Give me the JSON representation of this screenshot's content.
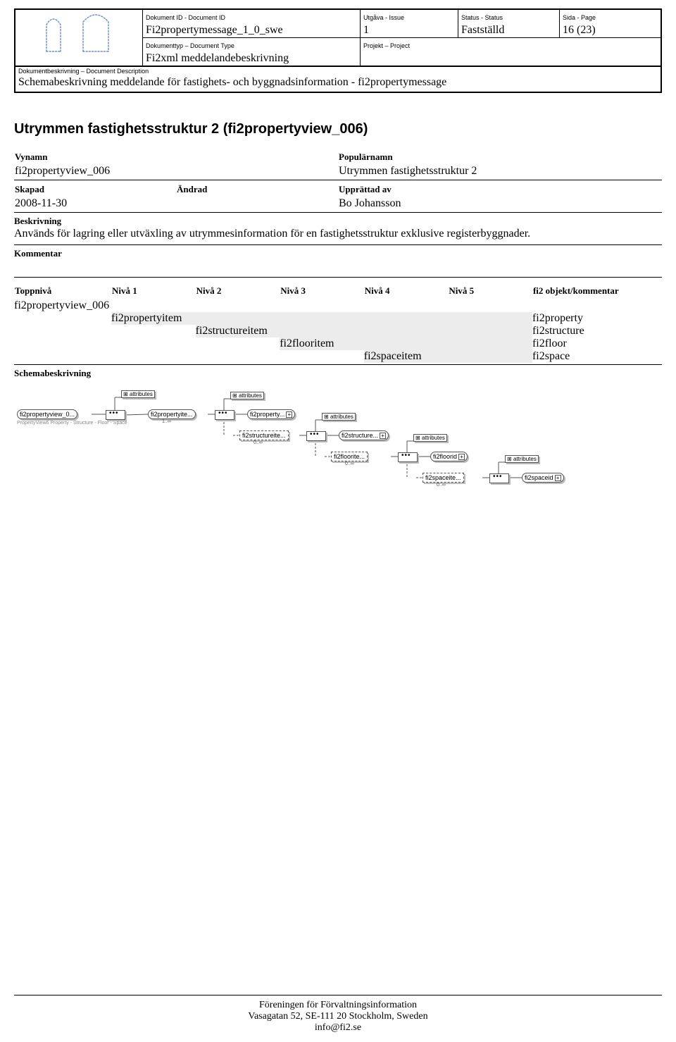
{
  "header": {
    "labels": {
      "doc_id": "Dokument ID - Document ID",
      "issue": "Utgåva - Issue",
      "status": "Status - Status",
      "page": "Sida - Page",
      "doc_type": "Dokumenttyp – Document Type",
      "project": "Projekt – Project",
      "doc_desc": "Dokumentbeskrivning – Document Description"
    },
    "doc_id": "Fi2propertymessage_1_0_swe",
    "issue": "1",
    "status": "Fastställd",
    "page": "16 (23)",
    "doc_type": "Fi2xml meddelandebeskrivning",
    "project": "",
    "doc_desc": "Schemabeskrivning meddelande för fastighets- och byggnadsinformation - fi2propertymessage"
  },
  "section_title": "Utrymmen fastighetsstruktur 2 (fi2propertyview_006)",
  "meta": {
    "labels": {
      "vynamn": "Vynamn",
      "popularnamn": "Populärnamn",
      "skapad": "Skapad",
      "andrad": "Ändrad",
      "upprattad": "Upprättad av",
      "beskrivning": "Beskrivning",
      "kommentar": "Kommentar"
    },
    "vynamn": "fi2propertyview_006",
    "popularnamn": "Utrymmen fastighetsstruktur 2",
    "skapad": "2008-11-30",
    "andrad": "",
    "upprattad": "Bo Johansson",
    "beskrivning": "Används för lagring eller utväxling av utrymmesinformation för en fastighetsstruktur exklusive registerbyggnader.",
    "kommentar": ""
  },
  "levels": {
    "headers": [
      "Toppnivå",
      "Nivå 1",
      "Nivå 2",
      "Nivå 3",
      "Nivå 4",
      "Nivå 5",
      "fi2 objekt/kommentar"
    ],
    "rows": [
      {
        "col": 0,
        "text": "fi2propertyview_006",
        "obj": "",
        "shade": false
      },
      {
        "col": 1,
        "text": "fi2propertyitem",
        "obj": "fi2property",
        "shade": true
      },
      {
        "col": 2,
        "text": "fi2structureitem",
        "obj": "fi2structure",
        "shade": true
      },
      {
        "col": 3,
        "text": "fi2flooritem",
        "obj": "fi2floor",
        "shade": true
      },
      {
        "col": 4,
        "text": "fi2spaceitem",
        "obj": "fi2space",
        "shade": true
      }
    ]
  },
  "schema": {
    "title": "Schemabeskrivning",
    "root": "fi2propertyview_0...",
    "root_sub": "PropertyView6 Property - Structure - Floor - Space",
    "attributes_label": "attributes",
    "items": [
      {
        "item": "fi2propertyite...",
        "card": "1..∞",
        "child": "fi2property...",
        "dash": false
      },
      {
        "item": "fi2structureite...",
        "card": "0..∞",
        "child": "fi2structure...",
        "dash": true
      },
      {
        "item": "fi2floorite...",
        "card": "0..∞",
        "child": "fi2floorid",
        "dash": true
      },
      {
        "item": "fi2spaceite...",
        "card": "0..∞",
        "child": "fi2spaceid",
        "dash": true
      }
    ]
  },
  "footer": {
    "line1": "Föreningen för Förvaltningsinformation",
    "line2": "Vasagatan 52, SE-111 20 Stockholm, Sweden",
    "line3": "info@fi2.se"
  }
}
